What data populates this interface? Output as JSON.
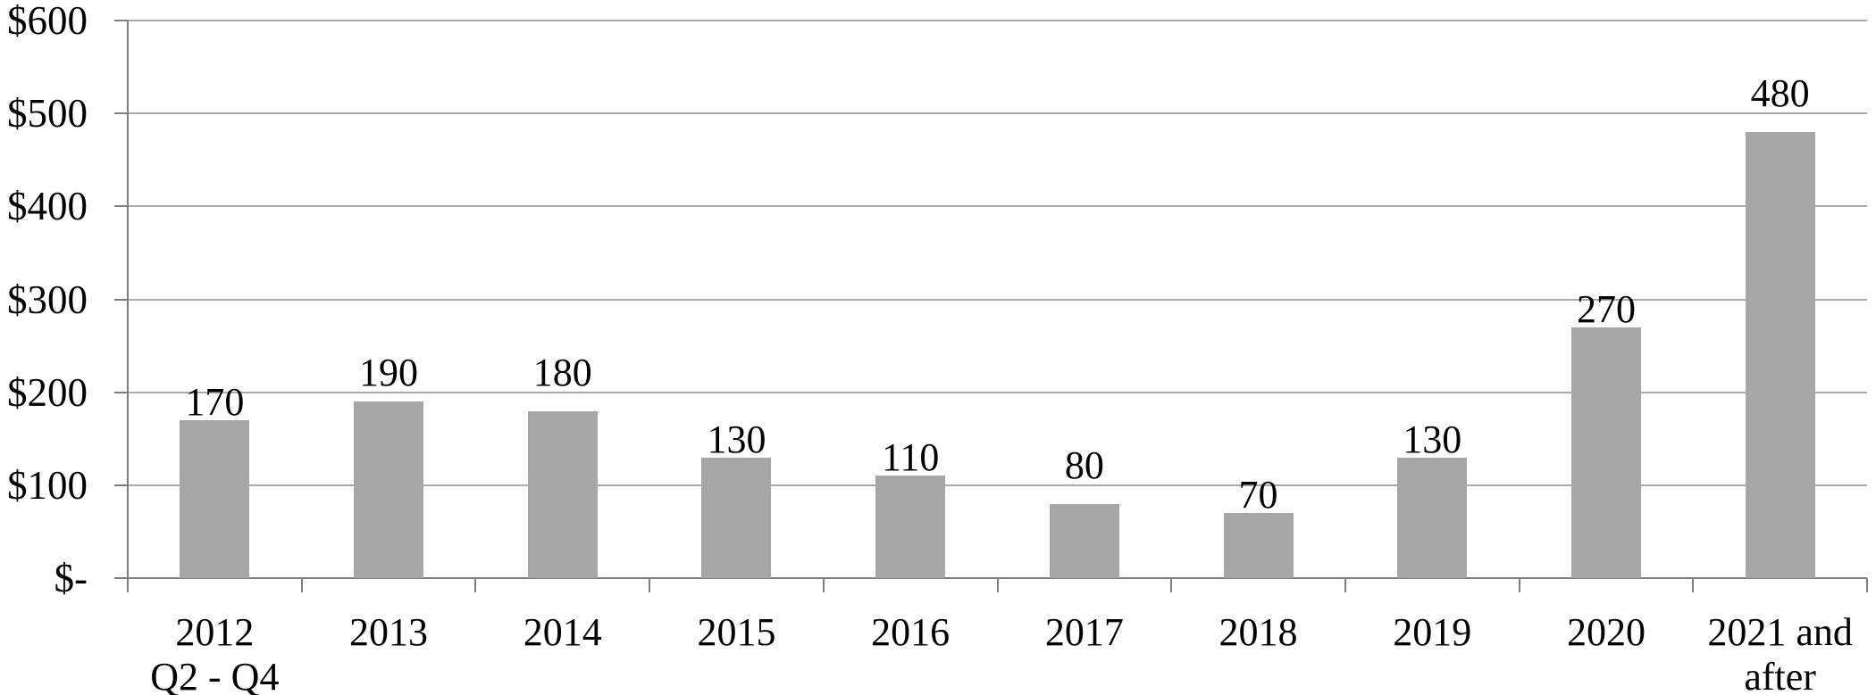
{
  "chart_data": {
    "type": "bar",
    "title": "",
    "xlabel": "",
    "ylabel": "",
    "categories": [
      "2012\nQ2 - Q4",
      "2013",
      "2014",
      "2015",
      "2016",
      "2017",
      "2018",
      "2019",
      "2020",
      "2021 and\nafter"
    ],
    "values": [
      170,
      190,
      180,
      130,
      110,
      80,
      70,
      130,
      270,
      480
    ],
    "value_labels": [
      "170",
      "190",
      "180",
      "130",
      "110",
      "80",
      "70",
      "130",
      "270",
      "480"
    ],
    "y_tick_labels": [
      "$600",
      "$500",
      "$400",
      "$300",
      "$200",
      "$100",
      "$-"
    ],
    "y_tick_values": [
      600,
      500,
      400,
      300,
      200,
      100,
      0
    ],
    "ylim": [
      0,
      600
    ],
    "grid": "horizontal",
    "legend_position": "none",
    "colors": {
      "bar_fill": "#a6a6a6",
      "gridline": "#a9a9a9",
      "axis": "#7f7f7f",
      "text": "#000000",
      "background": "#ffffff"
    }
  }
}
